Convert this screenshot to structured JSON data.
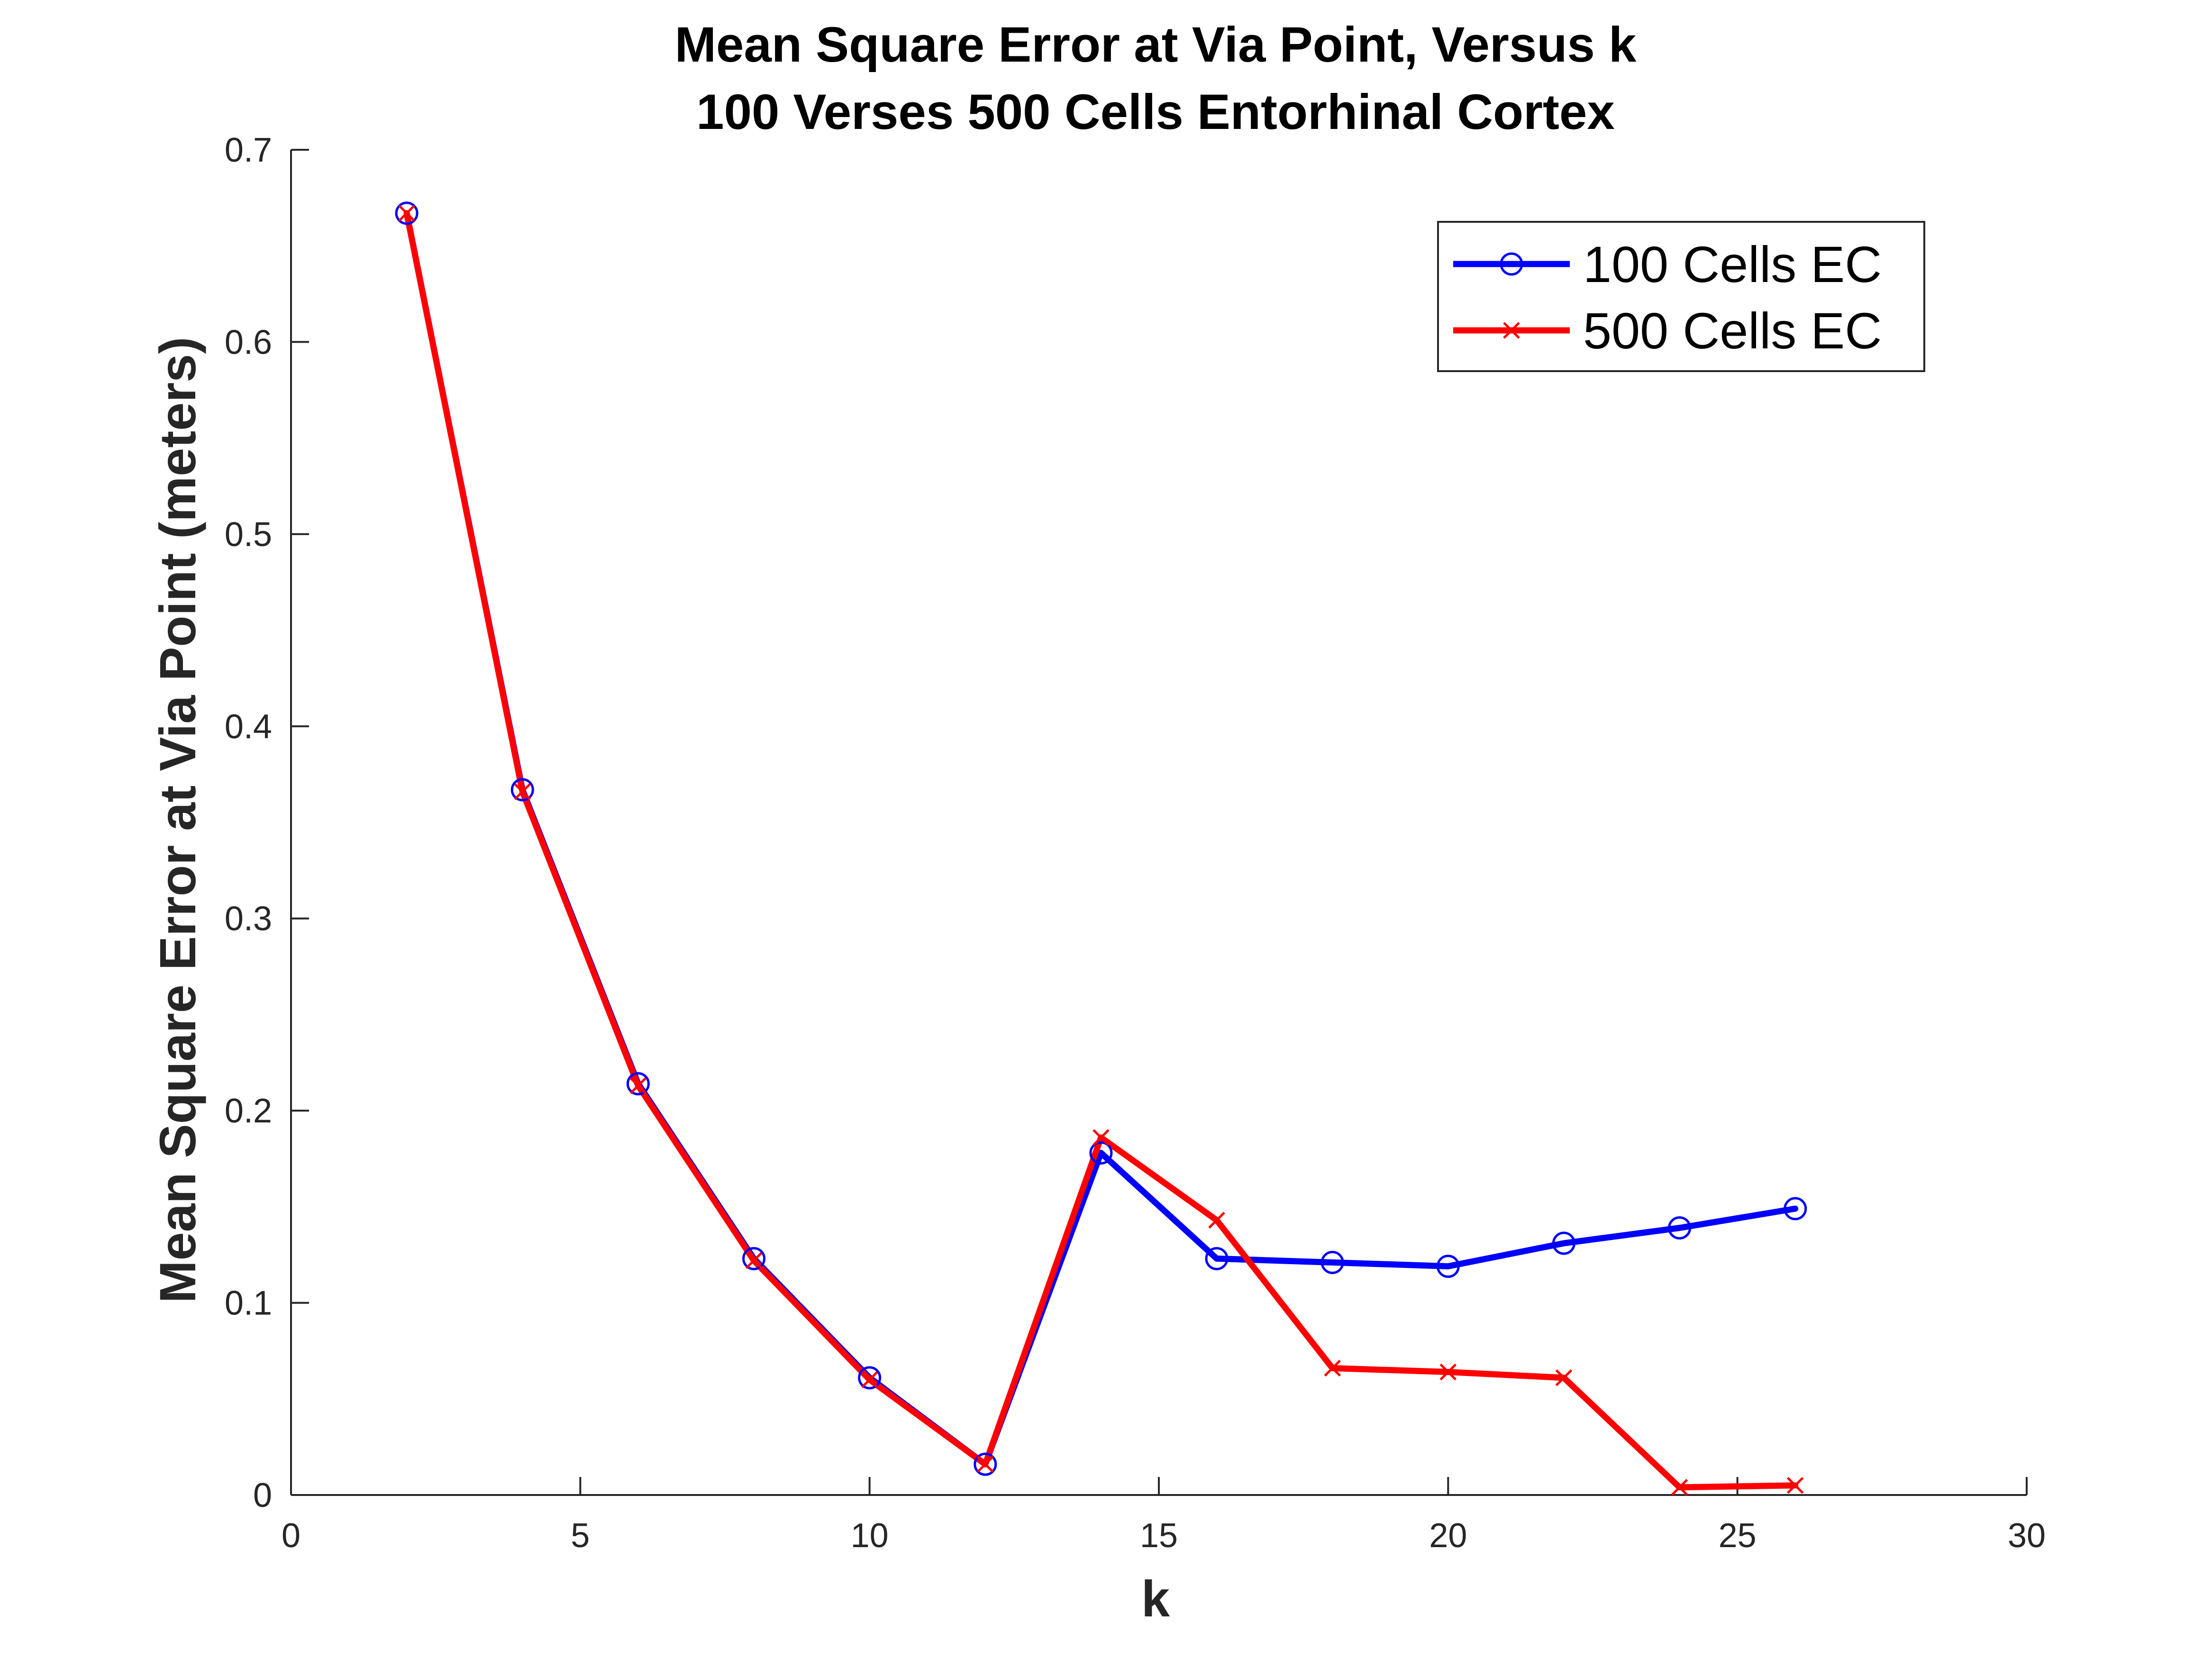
{
  "chart_data": {
    "type": "line",
    "title": "Mean Square Error at Via Point, Versus k",
    "subtitle": "100 Verses 500 Cells Entorhinal Cortex",
    "xlabel": "k",
    "ylabel": "Mean Square Error at Via Point (meters)",
    "xlim": [
      0,
      30
    ],
    "ylim": [
      0,
      0.7
    ],
    "xticks": [
      0,
      5,
      10,
      15,
      20,
      25,
      30
    ],
    "xtick_labels": [
      "0",
      "5",
      "10",
      "15",
      "20",
      "25",
      "30"
    ],
    "yticks": [
      0,
      0.1,
      0.2,
      0.3,
      0.4,
      0.5,
      0.6,
      0.7
    ],
    "ytick_labels": [
      "0",
      "0.1",
      "0.2",
      "0.3",
      "0.4",
      "0.5",
      "0.6",
      "0.7"
    ],
    "grid": false,
    "legend_position": "top-right",
    "x": [
      2,
      4,
      6,
      8,
      10,
      12,
      14,
      16,
      18,
      20,
      22,
      24,
      26
    ],
    "series": [
      {
        "name": "100 Cells EC",
        "color": "#0000ff",
        "marker": "circle",
        "values": [
          0.667,
          0.367,
          0.214,
          0.123,
          0.061,
          0.016,
          0.178,
          0.123,
          0.121,
          0.119,
          0.131,
          0.139,
          0.149
        ]
      },
      {
        "name": "500 Cells EC",
        "color": "#ff0000",
        "marker": "x",
        "values": [
          0.667,
          0.366,
          0.213,
          0.122,
          0.06,
          0.016,
          0.186,
          0.143,
          0.066,
          0.064,
          0.061,
          0.004,
          0.005
        ]
      }
    ]
  }
}
